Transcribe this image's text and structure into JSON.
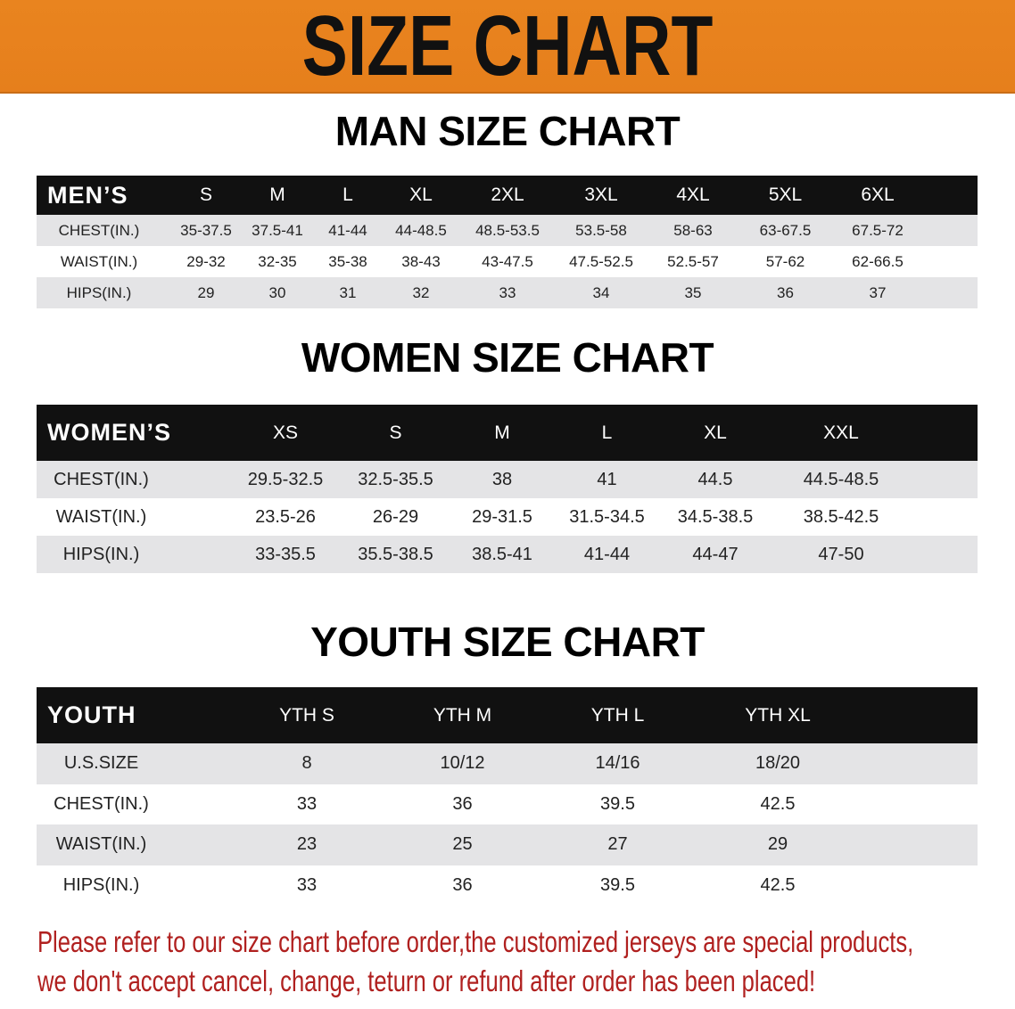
{
  "banner_title": "SIZE CHART",
  "colors": {
    "banner": "#e8821f",
    "header_row": "#111111",
    "stripe": "#e4e4e6",
    "note_text": "#b0201f"
  },
  "men": {
    "title": "MAN SIZE CHART",
    "header": [
      "MEN’S",
      "S",
      "M",
      "L",
      "XL",
      "2XL",
      "3XL",
      "4XL",
      "5XL",
      "6XL"
    ],
    "rows": [
      [
        "CHEST(IN.)",
        "35-37.5",
        "37.5-41",
        "41-44",
        "44-48.5",
        "48.5-53.5",
        "53.5-58",
        "58-63",
        "63-67.5",
        "67.5-72"
      ],
      [
        "WAIST(IN.)",
        "29-32",
        "32-35",
        "35-38",
        "38-43",
        "43-47.5",
        "47.5-52.5",
        "52.5-57",
        "57-62",
        "62-66.5"
      ],
      [
        "HIPS(IN.)",
        "29",
        "30",
        "31",
        "32",
        "33",
        "34",
        "35",
        "36",
        "37"
      ]
    ]
  },
  "women": {
    "title": "WOMEN SIZE CHART",
    "header": [
      "WOMEN’S",
      "XS",
      "S",
      "M",
      "L",
      "XL",
      "XXL"
    ],
    "rows": [
      [
        "CHEST(IN.)",
        "29.5-32.5",
        "32.5-35.5",
        "38",
        "41",
        "44.5",
        "44.5-48.5"
      ],
      [
        "WAIST(IN.)",
        "23.5-26",
        "26-29",
        "29-31.5",
        "31.5-34.5",
        "34.5-38.5",
        "38.5-42.5"
      ],
      [
        "HIPS(IN.)",
        "33-35.5",
        "35.5-38.5",
        "38.5-41",
        "41-44",
        "44-47",
        "47-50"
      ]
    ]
  },
  "youth": {
    "title": "YOUTH SIZE CHART",
    "header": [
      "YOUTH",
      "YTH S",
      "YTH M",
      "YTH L",
      "YTH XL"
    ],
    "rows": [
      [
        "U.S.SIZE",
        "8",
        "10/12",
        "14/16",
        "18/20"
      ],
      [
        "CHEST(IN.)",
        "33",
        "36",
        "39.5",
        "42.5"
      ],
      [
        "WAIST(IN.)",
        "23",
        "25",
        "27",
        "29"
      ],
      [
        "HIPS(IN.)",
        "33",
        "36",
        "39.5",
        "42.5"
      ]
    ]
  },
  "notice": {
    "line1": "Please refer to our size chart before order,the customized jerseys are special products,",
    "line2": "we don't accept cancel, change, teturn or refund after order has been placed!"
  }
}
